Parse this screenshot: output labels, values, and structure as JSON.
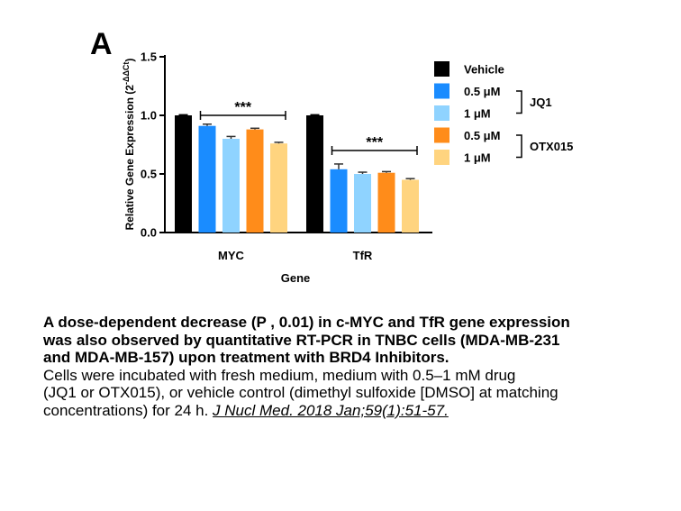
{
  "chart_data": {
    "type": "bar",
    "panel_label": "A",
    "xlabel": "Gene",
    "ylabel": "Relative Gene Expression (2",
    "ylabel_sup": "-ΔΔCt",
    "ylabel_close": ")",
    "ylim": [
      0,
      1.5
    ],
    "yticks": [
      "0.0",
      "0.5",
      "1.0",
      "1.5"
    ],
    "categories": [
      "MYC",
      "TfR"
    ],
    "series": [
      {
        "name": "Vehicle",
        "color": "#000000",
        "values": [
          1.0,
          1.0
        ],
        "errors": [
          0.005,
          0.005
        ]
      },
      {
        "name": "0.5 μM",
        "color": "#1a8cff",
        "values": [
          0.91,
          0.54
        ],
        "errors": [
          0.015,
          0.045
        ]
      },
      {
        "name": "1 μM",
        "color": "#8fd3ff",
        "values": [
          0.8,
          0.5
        ],
        "errors": [
          0.02,
          0.015
        ]
      },
      {
        "name": "0.5 μM",
        "color": "#ff8c1a",
        "values": [
          0.88,
          0.51
        ],
        "errors": [
          0.01,
          0.01
        ]
      },
      {
        "name": "1 μM",
        "color": "#ffd47f",
        "values": [
          0.76,
          0.45
        ],
        "errors": [
          0.01,
          0.01
        ]
      }
    ],
    "legend_groups": [
      {
        "label": "JQ1",
        "series_index": [
          1,
          2
        ]
      },
      {
        "label": "OTX015",
        "series_index": [
          3,
          4
        ]
      }
    ],
    "significance": [
      {
        "category": "MYC",
        "label": "***",
        "y": 1.0
      },
      {
        "category": "TfR",
        "label": "***",
        "y": 0.7
      }
    ],
    "legend_position": "right",
    "grid": false
  },
  "caption": {
    "bold_line_1": "A dose-dependent decrease (P , 0.01) in c-MYC and TfR gene expression",
    "bold_line_2": "was also observed by quantitative RT-PCR in TNBC cells (MDA-MB-231",
    "bold_line_3": "and MDA-MB-157) upon treatment with BRD4 Inhibitors.",
    "line_1": "Cells were incubated with fresh medium, medium with 0.5–1 mM drug",
    "line_2": "(JQ1 or OTX015), or vehicle control (dimethyl sulfoxide [DMSO] at matching",
    "line_3_text": "concentrations) for 24 h. ",
    "citation": "J Nucl Med. 2018 Jan;59(1):51-57."
  }
}
